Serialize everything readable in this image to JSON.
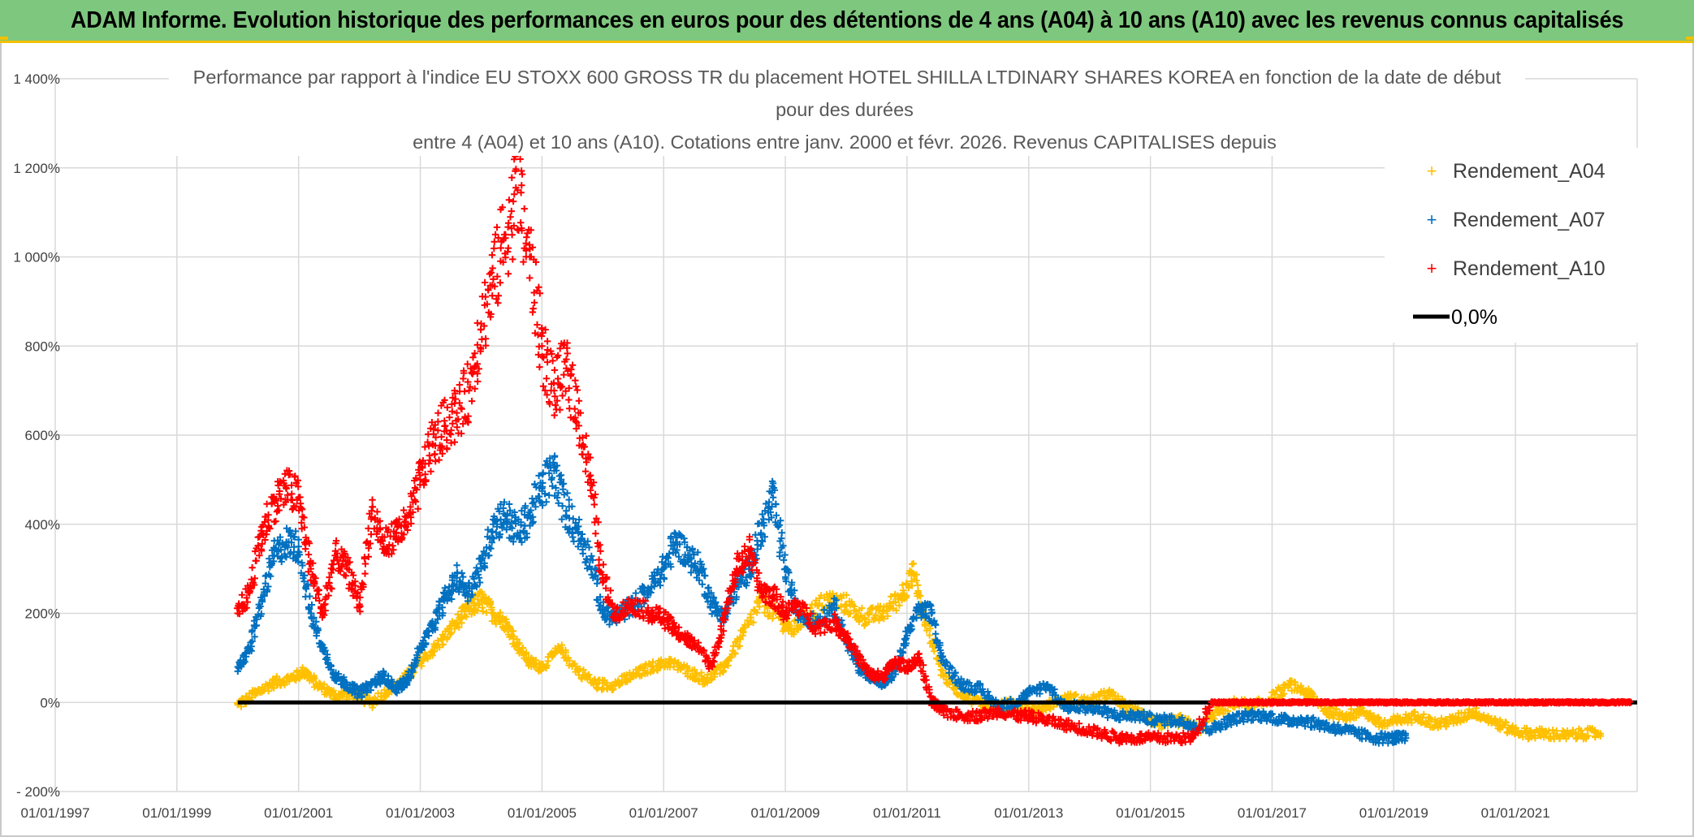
{
  "banner": {
    "title": "ADAM Informe. Evolution historique des performances en euros pour des détentions de 4 ans (A04) à 10 ans (A10) avec les revenus connus capitalisés"
  },
  "colors": {
    "banner_bg": "#7ec77e",
    "banner_accent": "#f0c000",
    "a04": "#ffc000",
    "a07": "#0070c0",
    "a10": "#ff0000",
    "zero": "#000000",
    "grid": "#d9d9d9"
  },
  "chart_data": {
    "type": "scatter",
    "title_lines": [
      "Performance par rapport à l'indice EU STOXX 600 GROSS TR  du placement HOTEL SHILLA LTDINARY SHARES KOREA en fonction de la date de début",
      "pour des durées",
      "entre 4 (A04) et 10 ans (A10). Cotations entre janv. 2000 et févr. 2026. Revenus CAPITALISES depuis"
    ],
    "xlabel": "",
    "ylabel": "",
    "x_range": [
      1997.0,
      2023.0
    ],
    "x_ticks": [
      1997,
      1999,
      2001,
      2003,
      2005,
      2007,
      2009,
      2011,
      2013,
      2015,
      2017,
      2019,
      2021
    ],
    "x_tick_labels": [
      "01/01/1997",
      "01/01/1999",
      "01/01/2001",
      "01/01/2003",
      "01/01/2005",
      "01/01/2007",
      "01/01/2009",
      "01/01/2011",
      "01/01/2013",
      "01/01/2015",
      "01/01/2017",
      "01/01/2019",
      "01/01/2021"
    ],
    "y_range": [
      -200,
      1400
    ],
    "y_ticks": [
      -200,
      0,
      200,
      400,
      600,
      800,
      1000,
      1200,
      1400
    ],
    "y_tick_labels": [
      "- 200%",
      "0%",
      "200%",
      "400%",
      "600%",
      "800%",
      "1 000%",
      "1 200%",
      "1 400%"
    ],
    "grid": true,
    "legend_position": "top-right",
    "series": [
      {
        "name": "Rendement_A04",
        "marker": "+",
        "color": "#ffc000",
        "x": [
          2000.0,
          2000.3,
          2000.6,
          2000.9,
          2001.1,
          2001.3,
          2001.6,
          2001.9,
          2002.2,
          2002.5,
          2002.8,
          2003.0,
          2003.3,
          2003.6,
          2003.8,
          2004.0,
          2004.2,
          2004.4,
          2004.6,
          2004.8,
          2005.0,
          2005.3,
          2005.6,
          2005.9,
          2006.2,
          2006.5,
          2006.8,
          2007.1,
          2007.4,
          2007.7,
          2008.0,
          2008.3,
          2008.6,
          2008.9,
          2009.1,
          2009.4,
          2009.7,
          2010.0,
          2010.3,
          2010.6,
          2010.9,
          2011.1,
          2011.3,
          2011.6,
          2011.9,
          2012.2,
          2012.5,
          2012.8,
          2013.1,
          2013.4,
          2013.7,
          2014.0,
          2014.3,
          2014.6,
          2014.9,
          2015.2,
          2015.5,
          2015.8,
          2016.1,
          2016.4,
          2016.7,
          2017.0,
          2017.3,
          2017.6,
          2017.9,
          2018.2,
          2018.5,
          2018.8,
          2019.1,
          2019.4,
          2019.7,
          2020.0,
          2020.3,
          2020.6,
          2020.9,
          2021.2,
          2021.5,
          2021.8,
          2022.1,
          2022.4
        ],
        "y": [
          -5,
          20,
          45,
          55,
          70,
          40,
          15,
          20,
          0,
          30,
          60,
          90,
          130,
          180,
          210,
          230,
          200,
          180,
          130,
          90,
          80,
          120,
          70,
          40,
          40,
          60,
          80,
          90,
          70,
          50,
          80,
          150,
          230,
          190,
          160,
          200,
          230,
          220,
          190,
          200,
          240,
          290,
          180,
          60,
          20,
          0,
          -10,
          0,
          -20,
          0,
          10,
          0,
          20,
          -10,
          -30,
          -50,
          -40,
          -60,
          -20,
          0,
          -10,
          10,
          40,
          20,
          -20,
          -30,
          -20,
          -50,
          -40,
          -30,
          -50,
          -40,
          -20,
          -40,
          -60,
          -70,
          -70,
          -75,
          -70,
          -70
        ]
      },
      {
        "name": "Rendement_A07",
        "marker": "+",
        "color": "#0070c0",
        "x": [
          2000.0,
          2000.2,
          2000.4,
          2000.6,
          2000.8,
          2001.0,
          2001.2,
          2001.4,
          2001.6,
          2001.8,
          2002.0,
          2002.2,
          2002.4,
          2002.6,
          2002.8,
          2003.0,
          2003.2,
          2003.4,
          2003.6,
          2003.8,
          2004.0,
          2004.2,
          2004.4,
          2004.6,
          2004.8,
          2005.0,
          2005.2,
          2005.4,
          2005.6,
          2005.8,
          2006.0,
          2006.2,
          2006.5,
          2006.8,
          2007.0,
          2007.2,
          2007.4,
          2007.6,
          2007.8,
          2008.0,
          2008.2,
          2008.4,
          2008.6,
          2008.8,
          2009.0,
          2009.2,
          2009.5,
          2009.8,
          2010.0,
          2010.2,
          2010.4,
          2010.6,
          2010.8,
          2011.0,
          2011.2,
          2011.4,
          2011.6,
          2011.9,
          2012.2,
          2012.5,
          2012.8,
          2013.0,
          2013.3,
          2013.6,
          2013.9,
          2014.2,
          2014.5,
          2014.8,
          2015.1,
          2015.4,
          2015.7,
          2016.0,
          2016.3,
          2016.6,
          2016.9,
          2017.2,
          2017.5,
          2017.8,
          2018.1,
          2018.4,
          2018.7,
          2019.0,
          2019.2
        ],
        "y": [
          80,
          120,
          230,
          330,
          360,
          350,
          200,
          120,
          60,
          40,
          20,
          40,
          60,
          30,
          50,
          120,
          170,
          230,
          280,
          250,
          300,
          400,
          420,
          380,
          420,
          480,
          520,
          430,
          380,
          320,
          200,
          190,
          220,
          260,
          300,
          360,
          330,
          300,
          220,
          190,
          260,
          300,
          380,
          460,
          300,
          200,
          180,
          220,
          140,
          80,
          60,
          40,
          70,
          150,
          210,
          200,
          90,
          40,
          30,
          -10,
          0,
          20,
          40,
          -10,
          -10,
          -20,
          -30,
          -30,
          -40,
          -40,
          -50,
          -60,
          -40,
          -30,
          -30,
          -40,
          -40,
          -50,
          -60,
          -70,
          -80,
          -80,
          -80
        ]
      },
      {
        "name": "Rendement_A10",
        "marker": "+",
        "color": "#ff0000",
        "x": [
          2000.0,
          2000.2,
          2000.4,
          2000.6,
          2000.8,
          2001.0,
          2001.2,
          2001.4,
          2001.6,
          2001.8,
          2002.0,
          2002.2,
          2002.4,
          2002.6,
          2002.8,
          2003.0,
          2003.2,
          2003.4,
          2003.6,
          2003.8,
          2004.0,
          2004.2,
          2004.4,
          2004.6,
          2004.8,
          2005.0,
          2005.2,
          2005.4,
          2005.6,
          2005.8,
          2006.0,
          2006.2,
          2006.5,
          2006.8,
          2007.0,
          2007.2,
          2007.4,
          2007.6,
          2007.8,
          2008.0,
          2008.2,
          2008.4,
          2008.6,
          2008.8,
          2009.0,
          2009.2,
          2009.5,
          2009.8,
          2010.0,
          2010.2,
          2010.4,
          2010.6,
          2010.8,
          2011.0,
          2011.2,
          2011.4,
          2011.6,
          2011.9,
          2012.2,
          2012.5,
          2012.8,
          2013.0,
          2013.3,
          2013.6,
          2013.9,
          2014.2,
          2014.5,
          2014.8,
          2015.1,
          2015.4,
          2015.7,
          2016.0,
          2016.3,
          2016.6,
          2016.9,
          2017.2,
          2017.5,
          2017.8,
          2018.1,
          2018.4,
          2018.7,
          2019.0,
          2019.3,
          2019.6,
          2019.9,
          2020.2,
          2020.5,
          2020.8,
          2021.1,
          2021.4,
          2021.7,
          2022.0,
          2022.3,
          2022.6,
          2022.9
        ],
        "y": [
          200,
          250,
          380,
          450,
          480,
          460,
          300,
          200,
          330,
          300,
          220,
          430,
          350,
          380,
          400,
          500,
          580,
          620,
          650,
          700,
          850,
          950,
          1050,
          1150,
          1000,
          800,
          700,
          750,
          650,
          500,
          280,
          200,
          220,
          200,
          190,
          160,
          140,
          120,
          80,
          200,
          300,
          340,
          250,
          240,
          200,
          220,
          170,
          180,
          150,
          100,
          60,
          60,
          90,
          80,
          100,
          0,
          -20,
          -30,
          -30,
          -20,
          -30,
          -30,
          -40,
          -50,
          -60,
          -70,
          -80,
          -80,
          -80,
          -80,
          -80,
          0,
          0,
          0,
          0,
          0,
          0,
          0,
          0,
          0,
          0,
          0,
          0,
          0,
          0,
          0,
          0,
          0,
          0,
          0,
          0,
          0,
          0,
          0,
          0
        ]
      }
    ],
    "reference_line": {
      "name": "0,0%",
      "y": 0,
      "x": [
        2000.0,
        2023.0
      ],
      "color": "#000000"
    },
    "legend": [
      {
        "label": "Rendement_A04",
        "type": "marker",
        "color": "#ffc000"
      },
      {
        "label": "Rendement_A07",
        "type": "marker",
        "color": "#0070c0"
      },
      {
        "label": "Rendement_A10",
        "type": "marker",
        "color": "#ff0000"
      },
      {
        "label": "0,0%",
        "type": "line",
        "color": "#000000"
      }
    ]
  }
}
